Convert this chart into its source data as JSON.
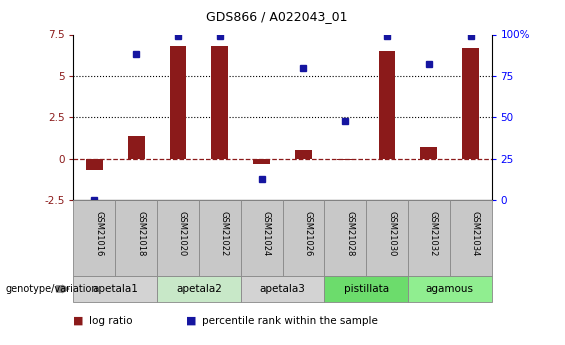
{
  "title": "GDS866 / A022043_01",
  "samples": [
    "GSM21016",
    "GSM21018",
    "GSM21020",
    "GSM21022",
    "GSM21024",
    "GSM21026",
    "GSM21028",
    "GSM21030",
    "GSM21032",
    "GSM21034"
  ],
  "log_ratio": [
    -0.7,
    1.4,
    6.8,
    6.8,
    -0.35,
    0.55,
    -0.05,
    6.5,
    0.7,
    6.7
  ],
  "percentile_rank": [
    0,
    88,
    99,
    99,
    13,
    80,
    48,
    99,
    82,
    99
  ],
  "log_ratio_ylim": [
    -2.5,
    7.5
  ],
  "dotted_lines_log": [
    2.5,
    5.0
  ],
  "bar_color": "#8B1A1A",
  "dot_color": "#1515a0",
  "groups": [
    {
      "label": "apetala1",
      "samples": [
        0,
        1
      ],
      "color": "#d3d3d3"
    },
    {
      "label": "apetala2",
      "samples": [
        2,
        3
      ],
      "color": "#c8e8c8"
    },
    {
      "label": "apetala3",
      "samples": [
        4,
        5
      ],
      "color": "#d3d3d3"
    },
    {
      "label": "pistillata",
      "samples": [
        6,
        7
      ],
      "color": "#6cdc6c"
    },
    {
      "label": "agamous",
      "samples": [
        8,
        9
      ],
      "color": "#90ee90"
    }
  ],
  "legend_bar_label": "log ratio",
  "legend_dot_label": "percentile rank within the sample",
  "genotype_label": "genotype/variation",
  "pct_ticks": [
    0,
    25,
    50,
    75,
    100
  ],
  "pct_tick_labels": [
    "0",
    "25",
    "50",
    "75",
    "100%"
  ],
  "left_yticks": [
    -2.5,
    0,
    2.5,
    5,
    7.5
  ],
  "left_ytick_labels": [
    "-2.5",
    "0",
    "2.5",
    "5",
    "7.5"
  ]
}
